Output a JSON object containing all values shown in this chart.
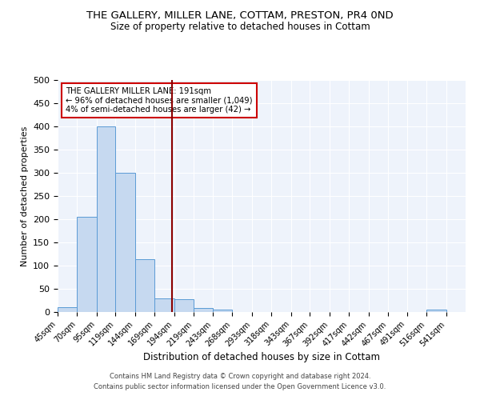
{
  "title": "THE GALLERY, MILLER LANE, COTTAM, PRESTON, PR4 0ND",
  "subtitle": "Size of property relative to detached houses in Cottam",
  "xlabel": "Distribution of detached houses by size in Cottam",
  "ylabel": "Number of detached properties",
  "bar_color": "#c6d9f0",
  "bar_edge_color": "#5b9bd5",
  "background_color": "#eef3fb",
  "bin_labels": [
    "45sqm",
    "70sqm",
    "95sqm",
    "119sqm",
    "144sqm",
    "169sqm",
    "194sqm",
    "219sqm",
    "243sqm",
    "268sqm",
    "293sqm",
    "318sqm",
    "343sqm",
    "367sqm",
    "392sqm",
    "417sqm",
    "442sqm",
    "467sqm",
    "491sqm",
    "516sqm",
    "541sqm"
  ],
  "bin_edges": [
    45,
    70,
    95,
    119,
    144,
    169,
    194,
    219,
    243,
    268,
    293,
    318,
    343,
    367,
    392,
    417,
    442,
    467,
    491,
    516,
    541,
    566
  ],
  "bar_heights": [
    10,
    205,
    400,
    300,
    113,
    30,
    27,
    8,
    6,
    0,
    0,
    0,
    0,
    0,
    0,
    0,
    0,
    0,
    0,
    5,
    0
  ],
  "property_size": 191,
  "vline_color": "#8b0000",
  "ylim": [
    0,
    500
  ],
  "yticks": [
    0,
    50,
    100,
    150,
    200,
    250,
    300,
    350,
    400,
    450,
    500
  ],
  "legend_title": "THE GALLERY MILLER LANE: 191sqm",
  "legend_line1": "← 96% of detached houses are smaller (1,049)",
  "legend_line2": "4% of semi-detached houses are larger (42) →",
  "legend_box_color": "#ffffff",
  "legend_box_edge": "#cc0000",
  "footer1": "Contains HM Land Registry data © Crown copyright and database right 2024.",
  "footer2": "Contains public sector information licensed under the Open Government Licence v3.0."
}
